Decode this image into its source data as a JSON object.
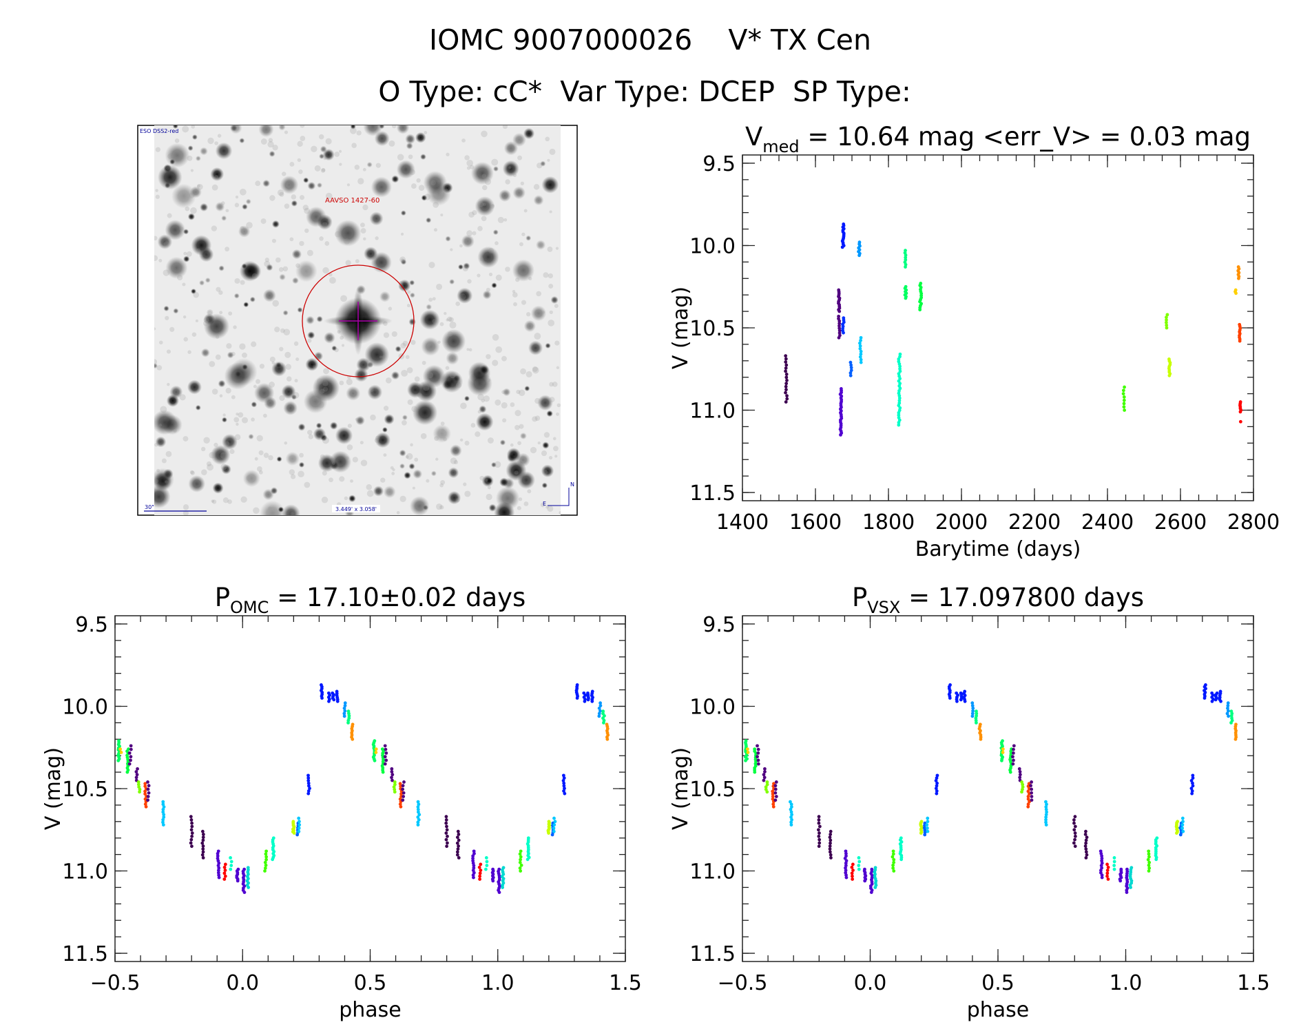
{
  "header": {
    "title": "IOMC 9007000026    V* TX Cen",
    "subtitle": "O Type: cC*  Var Type: DCEP  SP Type:"
  },
  "image_panel": {
    "survey_label": "ESO DSS2-red",
    "target_label": "AAVSO 1427-60",
    "scale_label": "30\"",
    "fov_label": "3.449' x 3.058'",
    "north_label": "N",
    "east_label": "E",
    "circle_color": "#cc0000",
    "cross_color": "#aa00aa",
    "text_color": "#000099"
  },
  "chart_data": [
    {
      "id": "lightcurve",
      "type": "scatter",
      "title_main": "V",
      "title_sub": "med",
      "title_rest": " = 10.64 mag <err_V> = 0.03 mag",
      "xlabel": "Barytime (days)",
      "ylabel": "V (mag)",
      "xlim": [
        1400,
        2800
      ],
      "ylim": [
        11.55,
        9.45
      ],
      "xticks": [
        1400,
        1600,
        1800,
        2000,
        2200,
        2400,
        2600,
        2800
      ],
      "xtick_labels": [
        "1400",
        "1600",
        "1800",
        "2000",
        "2200",
        "2400",
        "2600",
        "2800"
      ],
      "xminor": 50,
      "yticks": [
        9.5,
        10.0,
        10.5,
        11.0,
        11.5
      ],
      "ytick_labels": [
        "9.5",
        "10.0",
        "10.5",
        "11.0",
        "11.5"
      ],
      "yminor": 0.1,
      "clusters": [
        {
          "x": 1520,
          "mag": [
            10.67,
            10.95
          ],
          "n": 16,
          "color": "#3c0050"
        },
        {
          "x": 1665,
          "mag": [
            10.27,
            10.4
          ],
          "n": 14,
          "color": "#500080"
        },
        {
          "x": 1665,
          "mag": [
            10.43,
            10.56
          ],
          "n": 10,
          "color": "#500080"
        },
        {
          "x": 1670,
          "mag": [
            10.87,
            11.15
          ],
          "n": 26,
          "color": "#5000d0"
        },
        {
          "x": 1676,
          "mag": [
            9.87,
            10.01
          ],
          "n": 16,
          "color": "#0018ff"
        },
        {
          "x": 1676,
          "mag": [
            10.44,
            10.53
          ],
          "n": 8,
          "color": "#0030ff"
        },
        {
          "x": 1697,
          "mag": [
            10.71,
            10.79
          ],
          "n": 6,
          "color": "#0060ff"
        },
        {
          "x": 1720,
          "mag": [
            9.98,
            10.06
          ],
          "n": 8,
          "color": "#0098ff"
        },
        {
          "x": 1723,
          "mag": [
            10.56,
            10.71
          ],
          "n": 10,
          "color": "#00c8ff"
        },
        {
          "x": 1830,
          "mag": [
            10.66,
            11.09
          ],
          "n": 30,
          "color": "#00ffc8"
        },
        {
          "x": 1846,
          "mag": [
            10.03,
            10.13
          ],
          "n": 8,
          "color": "#00ff80"
        },
        {
          "x": 1847,
          "mag": [
            10.25,
            10.32
          ],
          "n": 8,
          "color": "#00ff60"
        },
        {
          "x": 1888,
          "mag": [
            10.23,
            10.39
          ],
          "n": 14,
          "color": "#00ff40"
        },
        {
          "x": 2445,
          "mag": [
            10.86,
            11.0
          ],
          "n": 8,
          "color": "#40ff00"
        },
        {
          "x": 2563,
          "mag": [
            10.42,
            10.5
          ],
          "n": 6,
          "color": "#80ff00"
        },
        {
          "x": 2570,
          "mag": [
            10.69,
            10.79
          ],
          "n": 10,
          "color": "#c8ff00"
        },
        {
          "x": 2750,
          "mag": [
            10.27,
            10.29
          ],
          "n": 3,
          "color": "#ffd000"
        },
        {
          "x": 2760,
          "mag": [
            10.13,
            10.2
          ],
          "n": 7,
          "color": "#ff9000"
        },
        {
          "x": 2762,
          "mag": [
            10.48,
            10.58
          ],
          "n": 10,
          "color": "#ff4000"
        },
        {
          "x": 2764,
          "mag": [
            10.95,
            11.01
          ],
          "n": 7,
          "color": "#ff0000"
        },
        {
          "x": 2764,
          "mag": [
            11.07,
            11.07
          ],
          "n": 1,
          "color": "#ff0000"
        }
      ]
    },
    {
      "id": "phase_omc",
      "type": "scatter",
      "title_main": "P",
      "title_sub": "OMC",
      "title_rest": " = 17.10±0.02 days",
      "xlabel": "phase",
      "ylabel": "V (mag)",
      "xlim": [
        -0.5,
        1.5
      ],
      "ylim": [
        11.55,
        9.45
      ],
      "xticks": [
        -0.5,
        0.0,
        0.5,
        1.0,
        1.5
      ],
      "xtick_labels": [
        "−0.5",
        "0.0",
        "0.5",
        "1.0",
        "1.5"
      ],
      "xminor": 0.1,
      "yticks": [
        9.5,
        10.0,
        10.5,
        11.0,
        11.5
      ],
      "ytick_labels": [
        "9.5",
        "10.0",
        "10.5",
        "11.0",
        "11.5"
      ],
      "yminor": 0.1,
      "repeat_offset": 1.0,
      "clusters": "phase_clusters"
    },
    {
      "id": "phase_vsx",
      "type": "scatter",
      "title_main": "P",
      "title_sub": "VSX",
      "title_rest": " = 17.097800 days",
      "xlabel": "phase",
      "ylabel": "V (mag)",
      "xlim": [
        -0.5,
        1.5
      ],
      "ylim": [
        11.55,
        9.45
      ],
      "xticks": [
        -0.5,
        0.0,
        0.5,
        1.0,
        1.5
      ],
      "xtick_labels": [
        "−0.5",
        "0.0",
        "0.5",
        "1.0",
        "1.5"
      ],
      "xminor": 0.1,
      "yticks": [
        9.5,
        10.0,
        10.5,
        11.0,
        11.5
      ],
      "ytick_labels": [
        "9.5",
        "10.0",
        "10.5",
        "11.0",
        "11.5"
      ],
      "yminor": 0.1,
      "repeat_offset": 1.0,
      "clusters": "phase_clusters"
    }
  ],
  "phase_clusters": [
    {
      "x": -0.485,
      "mag": [
        10.21,
        10.33
      ],
      "n": 12,
      "color": "#00ff60"
    },
    {
      "x": -0.478,
      "mag": [
        10.26,
        10.28
      ],
      "n": 2,
      "color": "#ffd000"
    },
    {
      "x": -0.45,
      "mag": [
        10.26,
        10.4
      ],
      "n": 12,
      "color": "#00ff40"
    },
    {
      "x": -0.44,
      "mag": [
        10.24,
        10.35
      ],
      "n": 6,
      "color": "#500080"
    },
    {
      "x": -0.415,
      "mag": [
        10.38,
        10.45
      ],
      "n": 5,
      "color": "#500080"
    },
    {
      "x": -0.405,
      "mag": [
        10.46,
        10.52
      ],
      "n": 5,
      "color": "#80ff00"
    },
    {
      "x": -0.38,
      "mag": [
        10.47,
        10.61
      ],
      "n": 10,
      "color": "#ff4000"
    },
    {
      "x": -0.37,
      "mag": [
        10.46,
        10.57
      ],
      "n": 6,
      "color": "#500080"
    },
    {
      "x": -0.31,
      "mag": [
        10.58,
        10.72
      ],
      "n": 10,
      "color": "#00c8ff"
    },
    {
      "x": -0.2,
      "mag": [
        10.67,
        10.85
      ],
      "n": 10,
      "color": "#3c0050"
    },
    {
      "x": -0.155,
      "mag": [
        10.76,
        10.92
      ],
      "n": 10,
      "color": "#3c0050"
    },
    {
      "x": -0.095,
      "mag": [
        10.88,
        11.04
      ],
      "n": 12,
      "color": "#5000d0"
    },
    {
      "x": -0.07,
      "mag": [
        10.96,
        11.05
      ],
      "n": 6,
      "color": "#ff0000"
    },
    {
      "x": -0.045,
      "mag": [
        10.92,
        10.99
      ],
      "n": 4,
      "color": "#00ffc8"
    },
    {
      "x": -0.02,
      "mag": [
        10.99,
        11.06
      ],
      "n": 8,
      "color": "#5000d0"
    },
    {
      "x": 0.005,
      "mag": [
        10.99,
        11.13
      ],
      "n": 12,
      "color": "#5000d0"
    },
    {
      "x": 0.02,
      "mag": [
        10.98,
        11.1
      ],
      "n": 10,
      "color": "#00d8d0"
    },
    {
      "x": 0.09,
      "mag": [
        10.88,
        11.0
      ],
      "n": 8,
      "color": "#40ff00"
    },
    {
      "x": 0.12,
      "mag": [
        10.8,
        10.93
      ],
      "n": 12,
      "color": "#00ffc8"
    },
    {
      "x": 0.2,
      "mag": [
        10.7,
        10.77
      ],
      "n": 10,
      "color": "#c8ff00"
    },
    {
      "x": 0.215,
      "mag": [
        10.71,
        10.78
      ],
      "n": 6,
      "color": "#0060ff"
    },
    {
      "x": 0.222,
      "mag": [
        10.68,
        10.76
      ],
      "n": 5,
      "color": "#00c8ff"
    },
    {
      "x": 0.26,
      "mag": [
        10.42,
        10.53
      ],
      "n": 8,
      "color": "#0018ff"
    },
    {
      "x": 0.31,
      "mag": [
        9.87,
        9.95
      ],
      "n": 8,
      "color": "#0018ff"
    },
    {
      "x": 0.34,
      "mag": [
        9.92,
        9.97
      ],
      "n": 5,
      "color": "#0018ff"
    },
    {
      "x": 0.355,
      "mag": [
        9.92,
        9.96
      ],
      "n": 5,
      "color": "#0018ff"
    },
    {
      "x": 0.37,
      "mag": [
        9.91,
        9.97
      ],
      "n": 6,
      "color": "#0018ff"
    },
    {
      "x": 0.4,
      "mag": [
        9.98,
        10.06
      ],
      "n": 6,
      "color": "#0098ff"
    },
    {
      "x": 0.415,
      "mag": [
        10.03,
        10.1
      ],
      "n": 6,
      "color": "#00ff80"
    },
    {
      "x": 0.43,
      "mag": [
        10.11,
        10.2
      ],
      "n": 8,
      "color": "#ff9000"
    }
  ]
}
